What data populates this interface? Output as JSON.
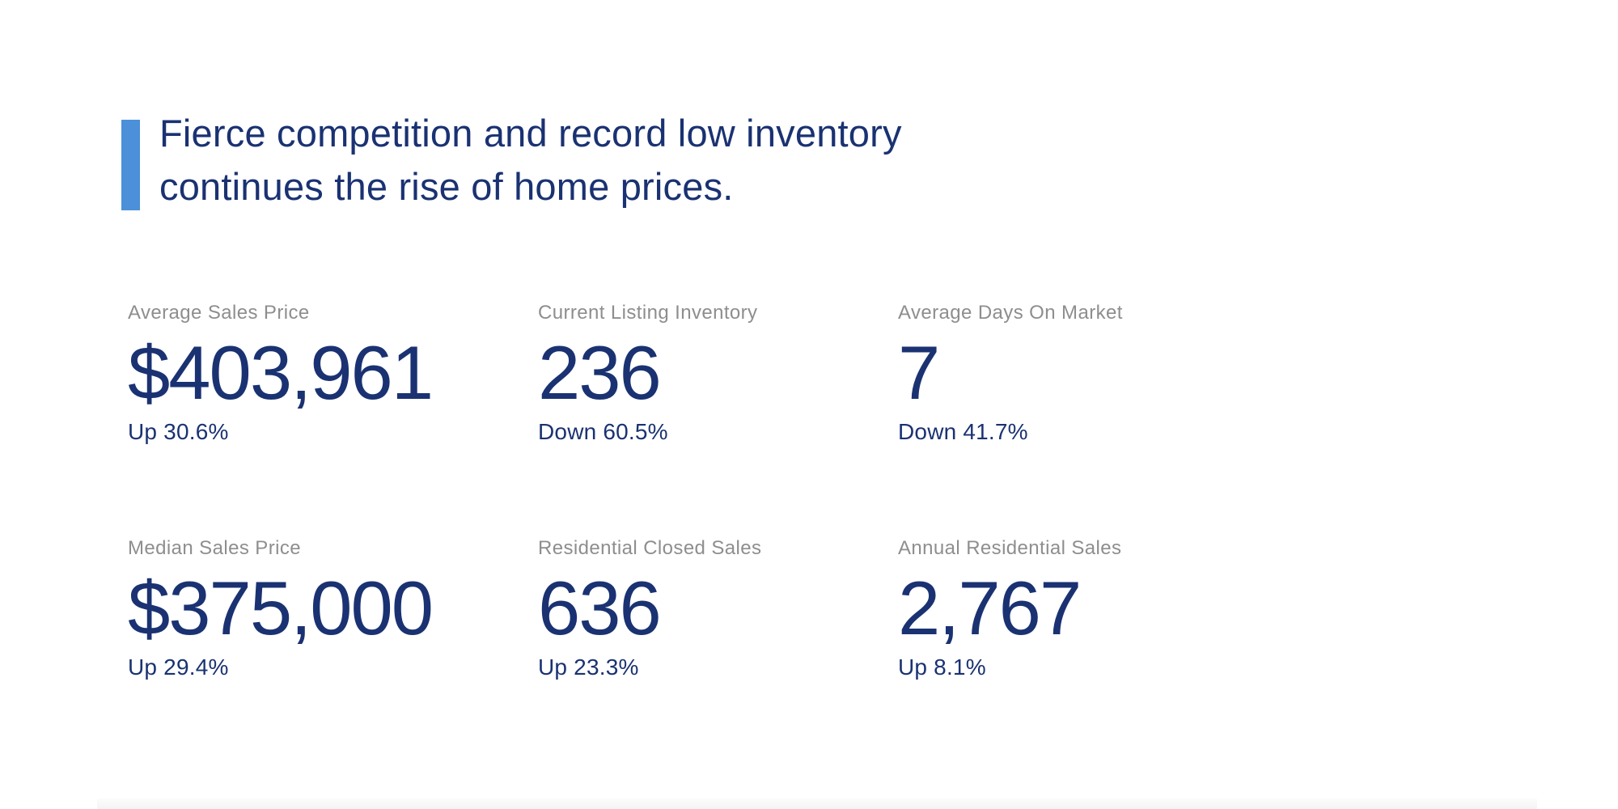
{
  "theme": {
    "accent": "#4b90d9",
    "navy": "#1a3272",
    "label-gray": "#8e8e8e",
    "background": "#ffffff"
  },
  "headline": {
    "line1": "Fierce competition and record low inventory",
    "line2": "continues the rise of home prices."
  },
  "stats": [
    {
      "label": "Average Sales Price",
      "value": "$403,961",
      "change": "Up 30.6%"
    },
    {
      "label": "Current Listing Inventory",
      "value": "236",
      "change": "Down 60.5%"
    },
    {
      "label": "Average Days On Market",
      "value": "7",
      "change": "Down 41.7%"
    },
    {
      "label": "Median Sales Price",
      "value": "$375,000",
      "change": "Up 29.4%"
    },
    {
      "label": "Residential Closed Sales",
      "value": "636",
      "change": "Up 23.3%"
    },
    {
      "label": "Annual Residential Sales",
      "value": "2,767",
      "change": "Up 8.1%"
    }
  ]
}
